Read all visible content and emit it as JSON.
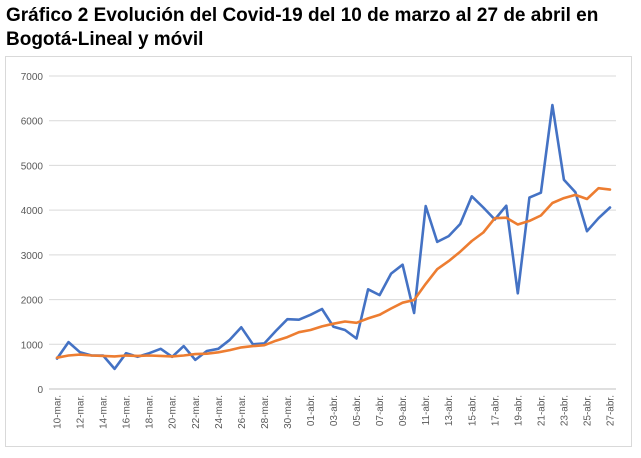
{
  "title": "Gráfico 2 Evolución del Covid-19 del 10 de marzo al 27 de abril en Bogotá-Lineal y móvil",
  "chart_data": {
    "type": "line",
    "title": "Gráfico 2 Evolución del Covid-19 del 10 de marzo al 27 de abril en Bogotá-Lineal y móvil",
    "xlabel": "",
    "ylabel": "",
    "ylim": [
      0,
      7000
    ],
    "yticks": [
      "0",
      "1000",
      "2000",
      "3000",
      "4000",
      "5000",
      "6000",
      "7000"
    ],
    "grid": true,
    "legend": "none",
    "categories": [
      "10-mar.",
      "11-mar.",
      "12-mar.",
      "13-mar.",
      "14-mar.",
      "15-mar.",
      "16-mar.",
      "17-mar.",
      "18-mar.",
      "19-mar.",
      "20-mar.",
      "21-mar.",
      "22-mar.",
      "23-mar.",
      "24-mar.",
      "25-mar.",
      "26-mar.",
      "27-mar.",
      "28-mar.",
      "29-mar.",
      "30-mar.",
      "31-mar.",
      "01-abr.",
      "02-abr.",
      "03-abr.",
      "04-abr.",
      "05-abr.",
      "06-abr.",
      "07-abr.",
      "08-abr.",
      "09-abr.",
      "10-abr.",
      "11-abr.",
      "12-abr.",
      "13-abr.",
      "14-abr.",
      "15-abr.",
      "16-abr.",
      "17-abr.",
      "18-abr.",
      "19-abr.",
      "20-abr.",
      "21-abr.",
      "22-abr.",
      "23-abr.",
      "24-abr.",
      "25-abr.",
      "26-abr.",
      "27-abr."
    ],
    "x_tick_labels": [
      "10-mar.",
      "12-mar.",
      "14-mar.",
      "16-mar.",
      "18-mar.",
      "20-mar.",
      "22-mar.",
      "24-mar.",
      "26-mar.",
      "28-mar.",
      "30-mar.",
      "01-abr.",
      "03-abr.",
      "05-abr.",
      "07-abr.",
      "09-abr.",
      "11-abr.",
      "13-abr.",
      "15-abr.",
      "17-abr.",
      "19-abr.",
      "21-abr.",
      "23-abr.",
      "25-abr.",
      "27-abr."
    ],
    "series": [
      {
        "color": "#4472c4",
        "values": [
          680,
          1050,
          820,
          750,
          750,
          450,
          800,
          720,
          800,
          900,
          720,
          960,
          650,
          850,
          900,
          1100,
          1380,
          1000,
          1020,
          1300,
          1560,
          1550,
          1660,
          1790,
          1390,
          1320,
          1130,
          2230,
          2100,
          2580,
          2780,
          1700,
          4090,
          3290,
          3420,
          3690,
          4310,
          4060,
          3790,
          4100,
          2140,
          4280,
          4390,
          6350,
          4680,
          4400,
          3530,
          3820,
          4060
        ]
      },
      {
        "color": "#ed7d31",
        "values": [
          700,
          750,
          770,
          750,
          740,
          730,
          750,
          740,
          750,
          740,
          730,
          750,
          780,
          790,
          820,
          870,
          930,
          960,
          980,
          1080,
          1160,
          1270,
          1320,
          1400,
          1460,
          1510,
          1480,
          1580,
          1660,
          1800,
          1930,
          1990,
          2350,
          2680,
          2860,
          3070,
          3310,
          3500,
          3820,
          3830,
          3680,
          3760,
          3880,
          4160,
          4270,
          4340,
          4250,
          4490,
          4460
        ]
      }
    ]
  }
}
